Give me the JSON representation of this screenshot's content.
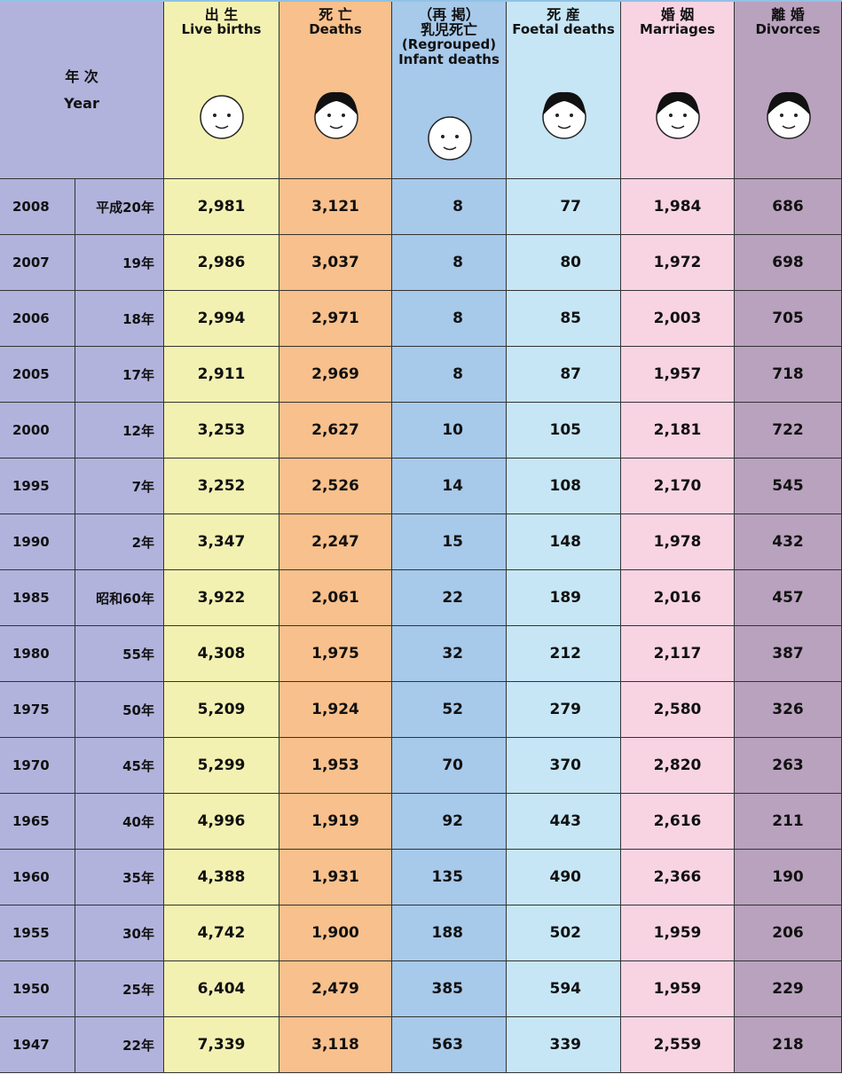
{
  "header": {
    "year": [
      "年 次",
      "Year"
    ],
    "columns": [
      [
        "出 生",
        "Live births"
      ],
      [
        "死 亡",
        "Deaths"
      ],
      [
        "（再 掲）",
        "乳児死亡",
        "(Regrouped)",
        "Infant deaths"
      ],
      [
        "死 産",
        "Foetal deaths"
      ],
      [
        "婚 姻",
        "Marriages"
      ],
      [
        "離 婚",
        "Divorces"
      ]
    ]
  },
  "rows": [
    [
      "2008",
      "平成20年",
      "2,981",
      "3,121",
      "8",
      "77",
      "1,984",
      "686"
    ],
    [
      "2007",
      "19年",
      "2,986",
      "3,037",
      "8",
      "80",
      "1,972",
      "698"
    ],
    [
      "2006",
      "18年",
      "2,994",
      "2,971",
      "8",
      "85",
      "2,003",
      "705"
    ],
    [
      "2005",
      "17年",
      "2,911",
      "2,969",
      "8",
      "87",
      "1,957",
      "718"
    ],
    [
      "2000",
      "12年",
      "3,253",
      "2,627",
      "10",
      "105",
      "2,181",
      "722"
    ],
    [
      "1995",
      "7年",
      "3,252",
      "2,526",
      "14",
      "108",
      "2,170",
      "545"
    ],
    [
      "1990",
      "2年",
      "3,347",
      "2,247",
      "15",
      "148",
      "1,978",
      "432"
    ],
    [
      "1985",
      "昭和60年",
      "3,922",
      "2,061",
      "22",
      "189",
      "2,016",
      "457"
    ],
    [
      "1980",
      "55年",
      "4,308",
      "1,975",
      "32",
      "212",
      "2,117",
      "387"
    ],
    [
      "1975",
      "50年",
      "5,209",
      "1,924",
      "52",
      "279",
      "2,580",
      "326"
    ],
    [
      "1970",
      "45年",
      "5,299",
      "1,953",
      "70",
      "370",
      "2,820",
      "263"
    ],
    [
      "1965",
      "40年",
      "4,996",
      "1,919",
      "92",
      "443",
      "2,616",
      "211"
    ],
    [
      "1960",
      "35年",
      "4,388",
      "1,931",
      "135",
      "490",
      "2,366",
      "190"
    ],
    [
      "1955",
      "30年",
      "4,742",
      "1,900",
      "188",
      "502",
      "1,959",
      "206"
    ],
    [
      "1950",
      "25年",
      "6,404",
      "2,479",
      "385",
      "594",
      "1,959",
      "229"
    ],
    [
      "1947",
      "22年",
      "7,339",
      "3,118",
      "563",
      "339",
      "2,559",
      "218"
    ]
  ]
}
